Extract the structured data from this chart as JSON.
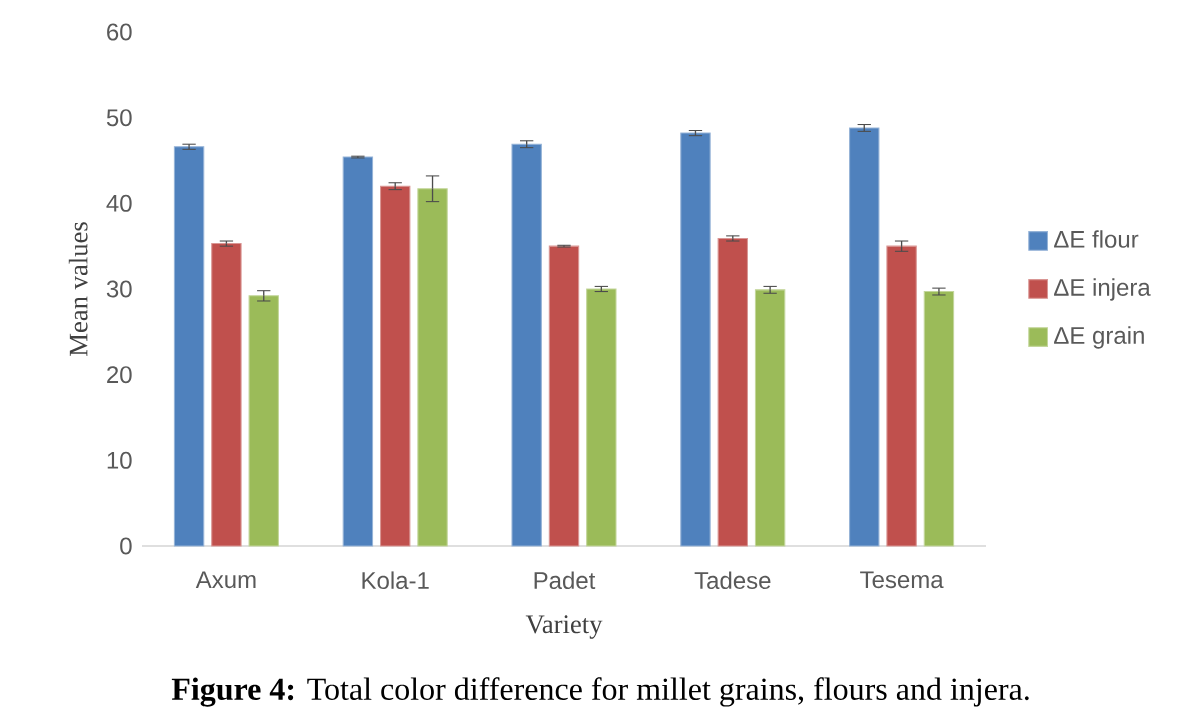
{
  "chart_data": {
    "type": "bar",
    "xlabel": "Variety",
    "ylabel": "Mean values",
    "categories": [
      "Axum",
      "Kola-1",
      "Padet",
      "Tadese",
      "Tesema"
    ],
    "series": [
      {
        "name": "ΔE flour",
        "color": "#4f81bd",
        "values": [
          46.6,
          45.4,
          46.9,
          48.2,
          48.8
        ],
        "errors": [
          0.3,
          0.1,
          0.4,
          0.3,
          0.4
        ]
      },
      {
        "name": "ΔE injera",
        "color": "#c0504d",
        "values": [
          35.3,
          42.0,
          35.0,
          35.9,
          35.0
        ],
        "errors": [
          0.3,
          0.4,
          0.1,
          0.3,
          0.6
        ]
      },
      {
        "name": "ΔE grain",
        "color": "#9bbb59",
        "values": [
          29.2,
          41.7,
          30.0,
          29.9,
          29.7
        ],
        "errors": [
          0.6,
          1.5,
          0.3,
          0.4,
          0.4
        ]
      }
    ],
    "ylim": [
      0,
      60
    ],
    "yticks": [
      0,
      10,
      20,
      30,
      40,
      50,
      60
    ],
    "grid": false,
    "legend": "right",
    "annotations": [
      "**Figure 4:** Total color difference for millet grains, flours and injera."
    ]
  }
}
